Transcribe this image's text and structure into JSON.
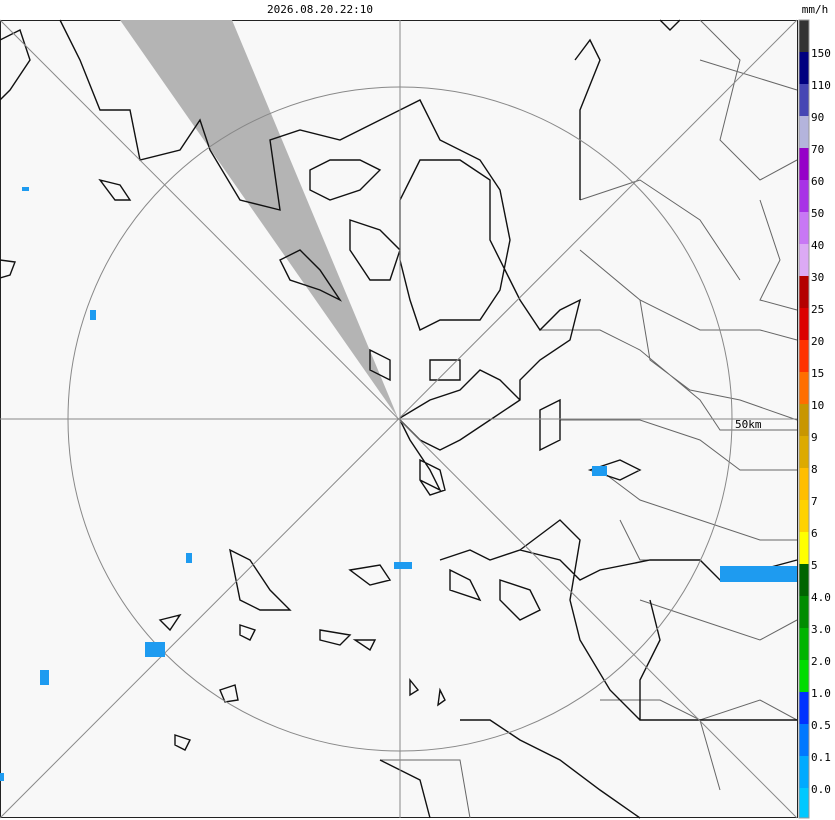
{
  "header": {
    "timestamp": "2026.08.20.22:10"
  },
  "map": {
    "range_label": "50km"
  },
  "legend": {
    "unit": "mm/h",
    "labels": [
      "150",
      "110",
      "90",
      "70",
      "60",
      "50",
      "40",
      "30",
      "25",
      "20",
      "15",
      "10",
      "9",
      "8",
      "7",
      "6",
      "5",
      "4.0",
      "3.0",
      "2.0",
      "1.0",
      "0.5",
      "0.1",
      "0.0"
    ],
    "colors": [
      "#333333",
      "#000080",
      "#4646b4",
      "#b4b4dc",
      "#9600c8",
      "#a832e6",
      "#c878f5",
      "#dcaaf5",
      "#b40000",
      "#dc0000",
      "#ff3200",
      "#ff6e00",
      "#c89600",
      "#dcaa00",
      "#ffbe00",
      "#ffd200",
      "#ffff00",
      "#006400",
      "#008c00",
      "#00b400",
      "#00dc00",
      "#0032ff",
      "#0078ff",
      "#00aaff",
      "#00c8ff"
    ]
  }
}
